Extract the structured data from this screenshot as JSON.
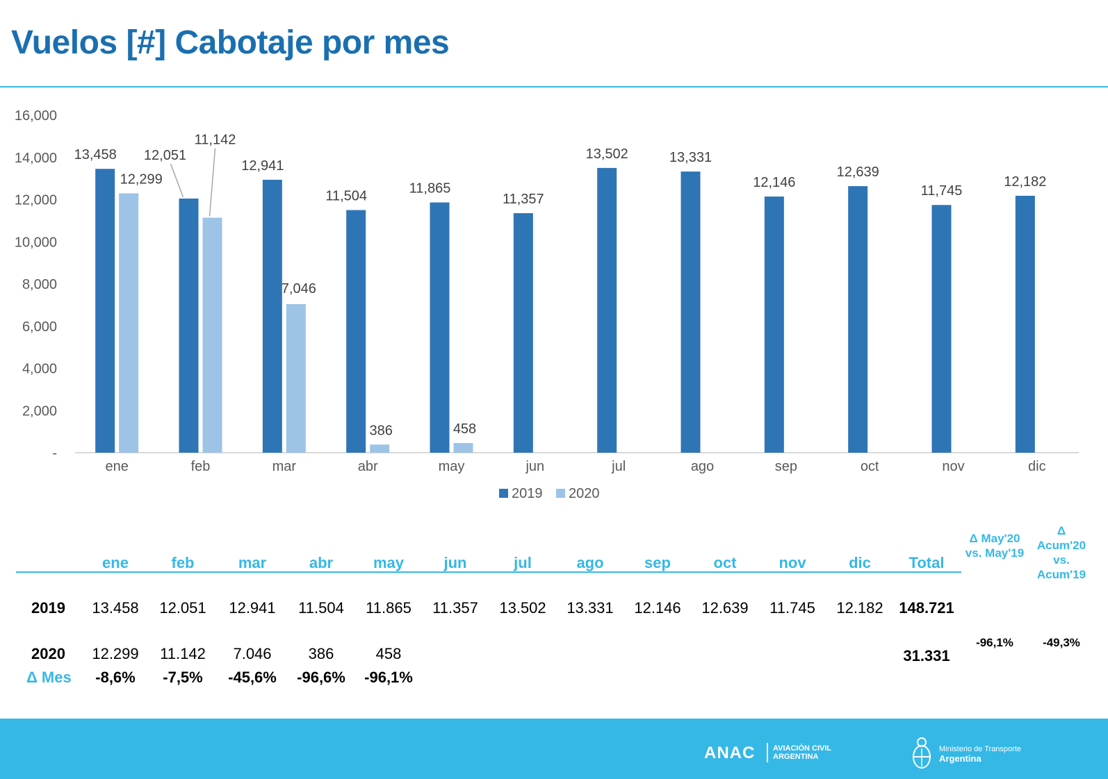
{
  "page": {
    "title": "Vuelos [#] Cabotaje por mes"
  },
  "colors": {
    "accent": "#35b8e6",
    "title": "#1a6fb0",
    "series_2019": "#2e75b6",
    "series_2020": "#9dc3e6"
  },
  "chart_data": {
    "type": "bar",
    "title": "",
    "xlabel": "",
    "ylabel": "",
    "ylim": [
      0,
      16000
    ],
    "yticks": [
      0,
      2000,
      4000,
      6000,
      8000,
      10000,
      12000,
      14000,
      16000
    ],
    "ytick_labels": [
      "-",
      "2,000",
      "4,000",
      "6,000",
      "8,000",
      "10,000",
      "12,000",
      "14,000",
      "16,000"
    ],
    "categories": [
      "ene",
      "feb",
      "mar",
      "abr",
      "may",
      "jun",
      "jul",
      "ago",
      "sep",
      "oct",
      "nov",
      "dic"
    ],
    "series": [
      {
        "name": "2019",
        "values": [
          13458,
          12051,
          12941,
          11504,
          11865,
          11357,
          13502,
          13331,
          12146,
          12639,
          11745,
          12182
        ],
        "labels": [
          "13,458",
          "12,051",
          "12,941",
          "11,504",
          "11,865",
          "11,357",
          "13,502",
          "13,331",
          "12,146",
          "12,639",
          "11,745",
          "12,182"
        ]
      },
      {
        "name": "2020",
        "values": [
          12299,
          11142,
          7046,
          386,
          458,
          null,
          null,
          null,
          null,
          null,
          null,
          null
        ],
        "labels": [
          "12,299",
          "11,142",
          "7,046",
          "386",
          "458",
          null,
          null,
          null,
          null,
          null,
          null,
          null
        ]
      }
    ],
    "grid": false,
    "legend": "bottom-center"
  },
  "table": {
    "headers": [
      "ene",
      "feb",
      "mar",
      "abr",
      "may",
      "jun",
      "jul",
      "ago",
      "sep",
      "oct",
      "nov",
      "dic",
      "Total"
    ],
    "row_2019": {
      "label": "2019",
      "values": [
        "13.458",
        "12.051",
        "12.941",
        "11.504",
        "11.865",
        "11.357",
        "13.502",
        "13.331",
        "12.146",
        "12.639",
        "11.745",
        "12.182"
      ],
      "total": "148.721"
    },
    "row_2020": {
      "label": "2020",
      "values": [
        "12.299",
        "11.142",
        "7.046",
        "386",
        "458"
      ],
      "total": "31.331"
    },
    "row_delta": {
      "label": "Δ Mes",
      "values": [
        "-8,6%",
        "-7,5%",
        "-45,6%",
        "-96,6%",
        "-96,1%"
      ]
    },
    "compare_month": {
      "header_line1": "Δ May'20",
      "header_line2": "vs. May'19",
      "value": "-96,1%"
    },
    "compare_accum": {
      "header_line1": "Δ Acum'20",
      "header_line2": "vs.",
      "header_line3": "Acum'19",
      "value": "-49,3%"
    }
  },
  "footer": {
    "anac": "ANAC",
    "anac_sub_line1": "AVIACIÓN CIVIL",
    "anac_sub_line2": "ARGENTINA",
    "ministry_line1": "Ministerio de Transporte",
    "ministry_line2": "Argentina"
  }
}
